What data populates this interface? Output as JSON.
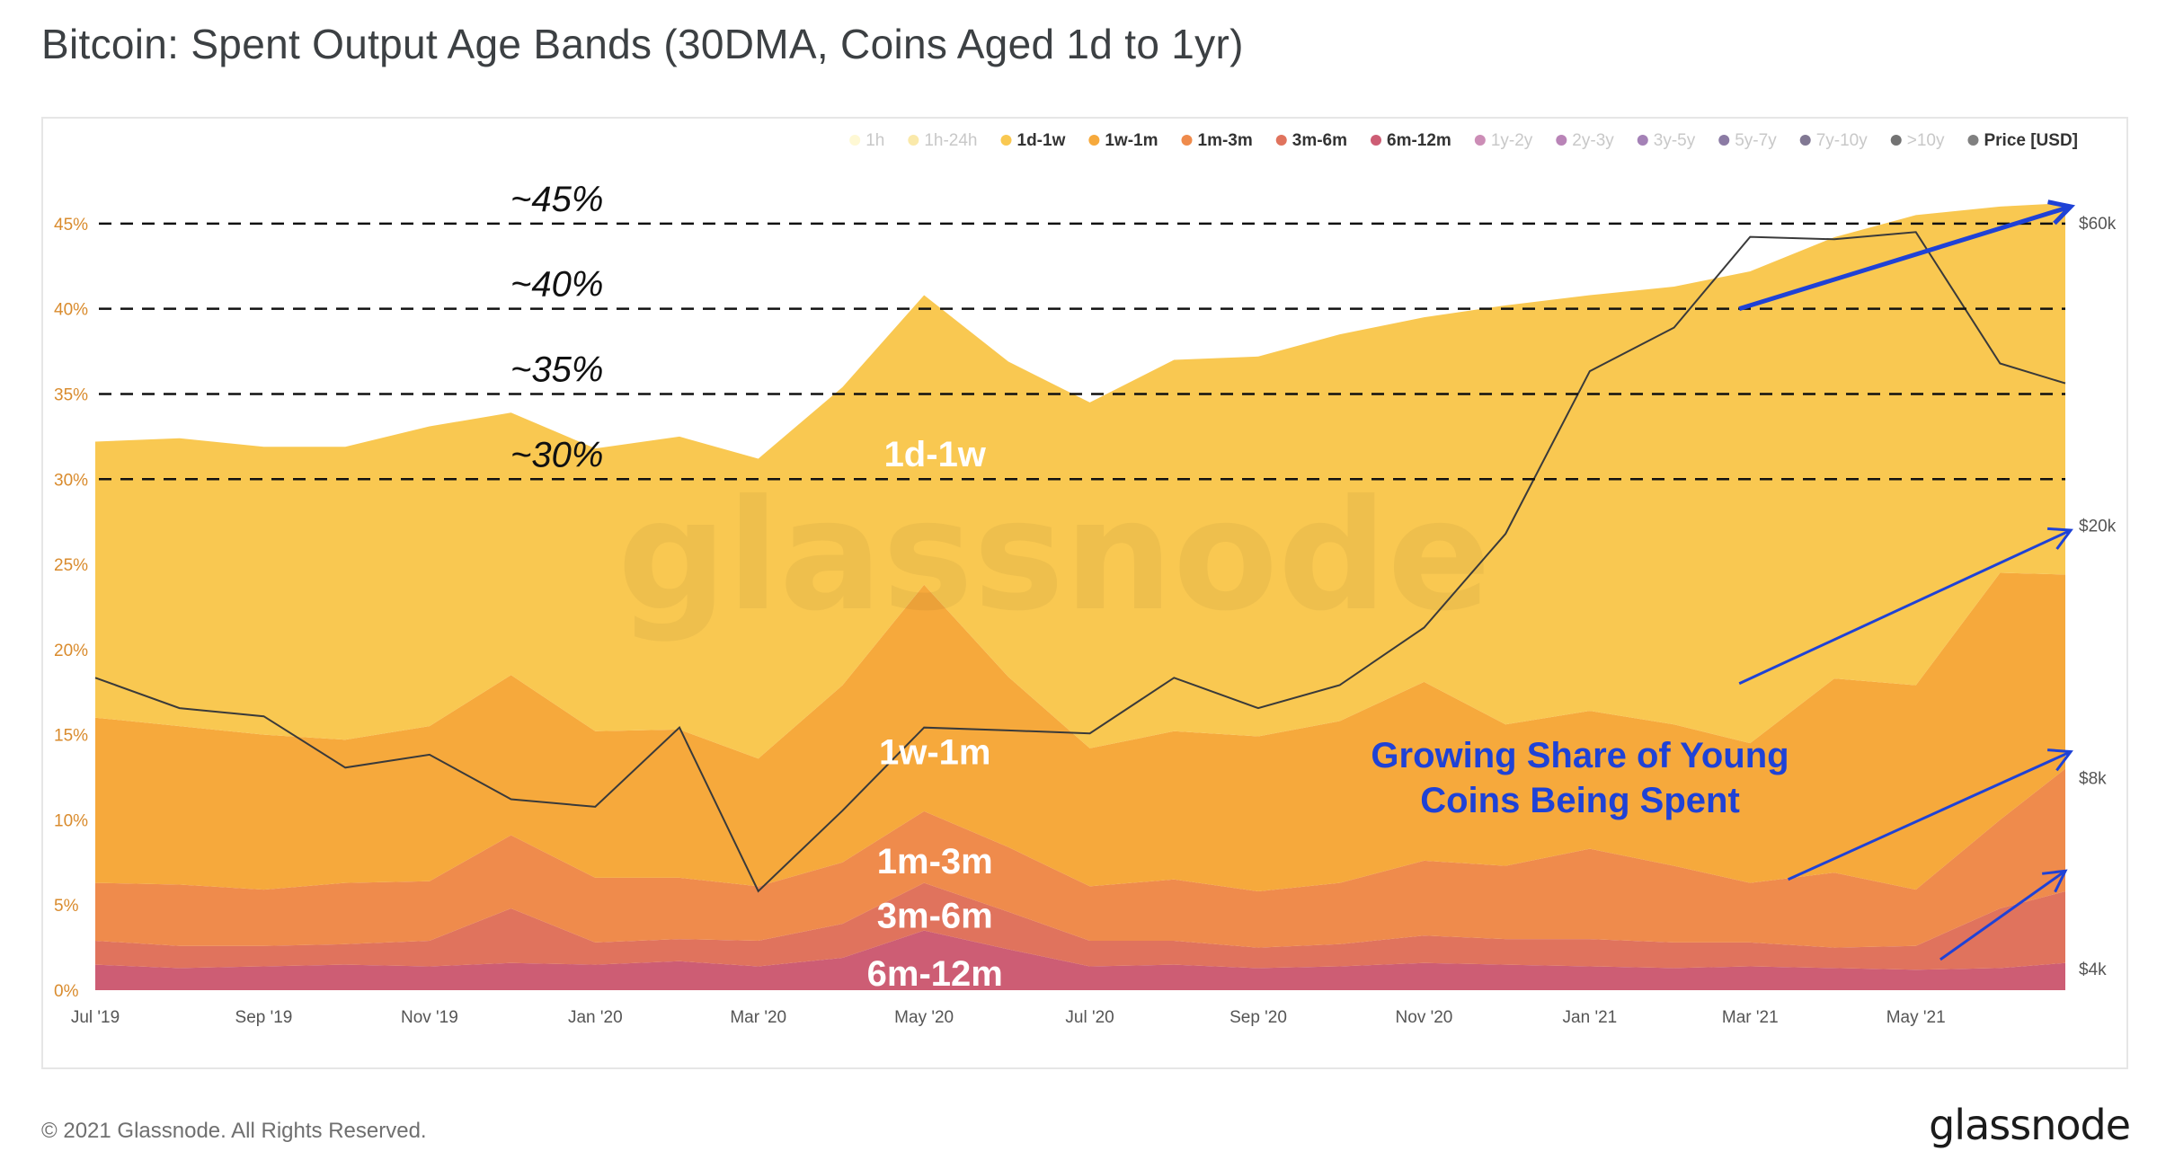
{
  "title": "Bitcoin: Spent Output Age Bands (30DMA, Coins Aged 1d to 1yr)",
  "footer": {
    "copyright": "© 2021 Glassnode. All Rights Reserved.",
    "logo": "glassnode"
  },
  "watermark": "glassnode",
  "colors": {
    "band_1d_1w": "#f9c851",
    "band_1w_1m": "#f6a93c",
    "band_1m_3m": "#ef8b4c",
    "band_3m_6m": "#e0735d",
    "band_6m_12m": "#cd5d74",
    "price": "#3a3a3a",
    "annotation_blue": "#1f42d6",
    "axis_text_left": "#d98b2d",
    "axis_text_right": "#555555"
  },
  "chart_data": {
    "type": "area",
    "stacked": true,
    "x": [
      "2019-07-01",
      "2019-08-01",
      "2019-09-01",
      "2019-10-01",
      "2019-11-01",
      "2019-12-01",
      "2020-01-01",
      "2020-02-01",
      "2020-03-01",
      "2020-04-01",
      "2020-05-01",
      "2020-06-01",
      "2020-07-01",
      "2020-08-01",
      "2020-09-01",
      "2020-10-01",
      "2020-11-01",
      "2020-12-01",
      "2021-01-01",
      "2021-02-01",
      "2021-03-01",
      "2021-04-01",
      "2021-05-01",
      "2021-06-01",
      "2021-06-25"
    ],
    "x_tick_labels": [
      "Jul '19",
      "Sep '19",
      "Nov '19",
      "Jan '20",
      "Mar '20",
      "May '20",
      "Jul '20",
      "Sep '20",
      "Nov '20",
      "Jan '21",
      "Mar '21",
      "May '21"
    ],
    "x_tick_dates": [
      "2019-07-01",
      "2019-09-01",
      "2019-11-01",
      "2020-01-01",
      "2020-03-01",
      "2020-05-01",
      "2020-07-01",
      "2020-09-01",
      "2020-11-01",
      "2021-01-01",
      "2021-03-01",
      "2021-05-01"
    ],
    "series": [
      {
        "name": "6m-12m",
        "color": "#cd5d74",
        "values": [
          1.5,
          1.3,
          1.4,
          1.5,
          1.4,
          1.6,
          1.5,
          1.7,
          1.4,
          1.9,
          3.5,
          2.4,
          1.4,
          1.5,
          1.3,
          1.4,
          1.6,
          1.5,
          1.4,
          1.3,
          1.4,
          1.3,
          1.2,
          1.3,
          1.6
        ]
      },
      {
        "name": "3m-6m",
        "color": "#e0735d",
        "values": [
          1.4,
          1.3,
          1.2,
          1.2,
          1.5,
          3.2,
          1.3,
          1.3,
          1.5,
          2.0,
          2.8,
          2.2,
          1.5,
          1.4,
          1.2,
          1.3,
          1.6,
          1.5,
          1.6,
          1.5,
          1.4,
          1.2,
          1.4,
          3.5,
          4.2
        ]
      },
      {
        "name": "1m-3m",
        "color": "#ef8b4c",
        "values": [
          3.4,
          3.6,
          3.3,
          3.6,
          3.5,
          4.3,
          3.8,
          3.6,
          3.2,
          3.6,
          4.2,
          3.8,
          3.2,
          3.6,
          3.3,
          3.6,
          4.4,
          4.3,
          5.3,
          4.5,
          3.5,
          4.4,
          3.3,
          5.2,
          7.2
        ]
      },
      {
        "name": "1w-1m",
        "color": "#f6a93c",
        "values": [
          9.7,
          9.3,
          9.1,
          8.4,
          9.1,
          9.4,
          8.6,
          8.7,
          7.5,
          10.4,
          13.3,
          10.0,
          8.1,
          8.7,
          9.1,
          9.5,
          10.5,
          8.3,
          8.1,
          8.3,
          8.2,
          11.4,
          12.0,
          14.5,
          11.4
        ]
      },
      {
        "name": "1d-1w",
        "color": "#f9c851",
        "values": [
          16.2,
          16.9,
          16.9,
          17.2,
          17.6,
          15.4,
          16.6,
          17.2,
          17.6,
          17.5,
          17.0,
          18.5,
          20.3,
          21.8,
          22.3,
          22.7,
          21.4,
          24.6,
          24.4,
          25.7,
          27.7,
          25.9,
          27.6,
          21.5,
          21.8
        ]
      }
    ],
    "price_series": {
      "name": "Price [USD]",
      "values": [
        11500,
        10300,
        10000,
        8300,
        8700,
        7400,
        7200,
        9600,
        5300,
        7100,
        9600,
        9500,
        9400,
        11500,
        10300,
        11200,
        13800,
        19400,
        35000,
        41000,
        57000,
        56500,
        58000,
        36000,
        33500
      ]
    },
    "y_left": {
      "ticks": [
        "0%",
        "5%",
        "10%",
        "15%",
        "20%",
        "25%",
        "30%",
        "35%",
        "40%",
        "45%"
      ],
      "range": [
        0,
        48
      ]
    },
    "y_right": {
      "ticks": [
        "$4k",
        "$8k",
        "$20k",
        "$60k"
      ],
      "scale": "log",
      "range": [
        3700,
        72000
      ]
    },
    "grid": false,
    "legend": {
      "placement": "top-right",
      "items": [
        {
          "label": "1h",
          "color": "#fdf2b1",
          "active": false
        },
        {
          "label": "1h-24h",
          "color": "#f6d765",
          "active": false
        },
        {
          "label": "1d-1w",
          "color": "#f9c851",
          "active": true
        },
        {
          "label": "1w-1m",
          "color": "#f6a93c",
          "active": true
        },
        {
          "label": "1m-3m",
          "color": "#ef8b4c",
          "active": true
        },
        {
          "label": "3m-6m",
          "color": "#e0735d",
          "active": true
        },
        {
          "label": "6m-12m",
          "color": "#cd5d74",
          "active": true
        },
        {
          "label": "1y-2y",
          "color": "#a3307a",
          "active": false
        },
        {
          "label": "2y-3y",
          "color": "#7f1f7c",
          "active": false
        },
        {
          "label": "3y-5y",
          "color": "#5a1a7a",
          "active": false
        },
        {
          "label": "5y-7y",
          "color": "#2c0f5a",
          "active": false
        },
        {
          "label": "7y-10y",
          "color": "#1a0a3a",
          "active": false
        },
        {
          "label": ">10y",
          "color": "#000000",
          "active": false
        },
        {
          "label": "Price [USD]",
          "color": "#808080",
          "active": true
        }
      ]
    },
    "reference_lines": [
      {
        "value": 30,
        "label": "~30%"
      },
      {
        "value": 35,
        "label": "~35%"
      },
      {
        "value": 40,
        "label": "~40%"
      },
      {
        "value": 45,
        "label": "~45%"
      }
    ],
    "band_labels": [
      "1d-1w",
      "1w-1m",
      "1m-3m",
      "3m-6m",
      "6m-12m"
    ],
    "annotation": {
      "text_line1": "Growing Share of Young",
      "text_line2": "Coins Being Spent"
    }
  }
}
